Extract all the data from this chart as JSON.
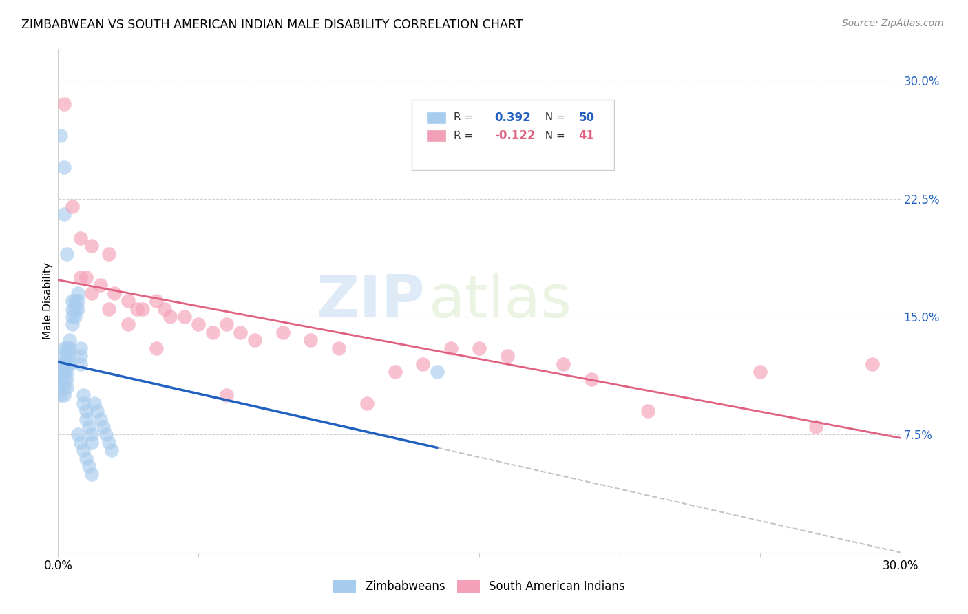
{
  "title": "ZIMBABWEAN VS SOUTH AMERICAN INDIAN MALE DISABILITY CORRELATION CHART",
  "source": "Source: ZipAtlas.com",
  "ylabel": "Male Disability",
  "xlim": [
    0.0,
    0.3
  ],
  "ylim": [
    0.0,
    0.32
  ],
  "r_zimbabwean": 0.392,
  "n_zimbabwean": 50,
  "r_south_american": -0.122,
  "n_south_american": 41,
  "zimbabwean_color": "#A8CCEE",
  "south_american_color": "#F4A0B8",
  "zimbabwean_line_color": "#2060C0",
  "south_american_line_color": "#E06080",
  "watermark_zip": "ZIP",
  "watermark_atlas": "atlas",
  "legend_label_1": "Zimbabweans",
  "legend_label_2": "South American Indians",
  "zim_x": [
    0.001,
    0.001,
    0.001,
    0.001,
    0.001,
    0.002,
    0.002,
    0.002,
    0.002,
    0.002,
    0.002,
    0.002,
    0.003,
    0.003,
    0.003,
    0.003,
    0.003,
    0.003,
    0.004,
    0.004,
    0.004,
    0.004,
    0.005,
    0.005,
    0.005,
    0.005,
    0.006,
    0.006,
    0.006,
    0.007,
    0.007,
    0.007,
    0.008,
    0.008,
    0.008,
    0.009,
    0.009,
    0.01,
    0.01,
    0.011,
    0.012,
    0.012,
    0.013,
    0.014,
    0.015,
    0.016,
    0.017,
    0.018,
    0.019,
    0.135
  ],
  "zim_y": [
    0.12,
    0.115,
    0.11,
    0.105,
    0.1,
    0.13,
    0.125,
    0.12,
    0.115,
    0.11,
    0.105,
    0.1,
    0.13,
    0.125,
    0.12,
    0.115,
    0.11,
    0.105,
    0.135,
    0.13,
    0.125,
    0.12,
    0.15,
    0.145,
    0.16,
    0.155,
    0.16,
    0.155,
    0.15,
    0.165,
    0.16,
    0.155,
    0.13,
    0.125,
    0.12,
    0.1,
    0.095,
    0.09,
    0.085,
    0.08,
    0.075,
    0.07,
    0.095,
    0.09,
    0.085,
    0.08,
    0.075,
    0.07,
    0.065,
    0.115
  ],
  "zim_y_extras": [
    0.265,
    0.245,
    0.215,
    0.19,
    0.075,
    0.07,
    0.065,
    0.06,
    0.055,
    0.05
  ],
  "zim_x_extras": [
    0.001,
    0.002,
    0.002,
    0.003,
    0.007,
    0.008,
    0.009,
    0.01,
    0.011,
    0.012
  ],
  "sam_x": [
    0.002,
    0.005,
    0.008,
    0.01,
    0.012,
    0.015,
    0.018,
    0.02,
    0.025,
    0.028,
    0.03,
    0.035,
    0.038,
    0.04,
    0.045,
    0.05,
    0.055,
    0.06,
    0.065,
    0.07,
    0.08,
    0.09,
    0.1,
    0.11,
    0.12,
    0.13,
    0.14,
    0.15,
    0.16,
    0.18,
    0.19,
    0.21,
    0.25,
    0.27,
    0.29,
    0.008,
    0.012,
    0.018,
    0.025,
    0.035,
    0.06
  ],
  "sam_y": [
    0.285,
    0.22,
    0.2,
    0.175,
    0.195,
    0.17,
    0.19,
    0.165,
    0.16,
    0.155,
    0.155,
    0.16,
    0.155,
    0.15,
    0.15,
    0.145,
    0.14,
    0.145,
    0.14,
    0.135,
    0.14,
    0.135,
    0.13,
    0.095,
    0.115,
    0.12,
    0.13,
    0.13,
    0.125,
    0.12,
    0.11,
    0.09,
    0.115,
    0.08,
    0.12,
    0.175,
    0.165,
    0.155,
    0.145,
    0.13,
    0.1
  ]
}
